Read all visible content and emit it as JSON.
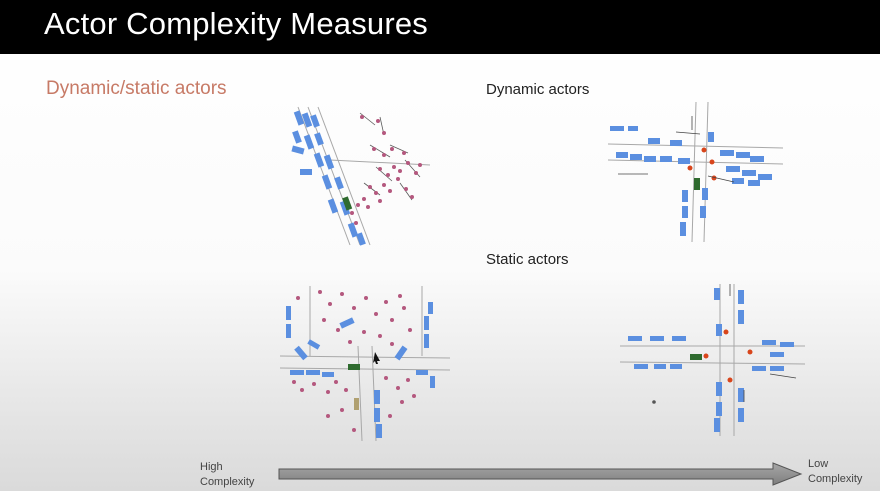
{
  "slide": {
    "title": "Actor Complexity Measures",
    "subtitle": "Dynamic/static actors",
    "dynamic_label": "Dynamic actors",
    "static_label": "Static actors",
    "scale": {
      "left_line1": "High",
      "left_line2": "Complexity",
      "right_line1": "Low",
      "right_line2": "Complexity"
    }
  },
  "colors": {
    "title_bar": "#000000",
    "subtitle": "#c77a66",
    "vehicle": "#5b8fe0",
    "ego_vehicle": "#2f6b2f",
    "pedestrian": "#b4587e",
    "traffic_light": "#d8451b",
    "lane": "#a8a8a8",
    "arrow": "#8c8c8c"
  }
}
